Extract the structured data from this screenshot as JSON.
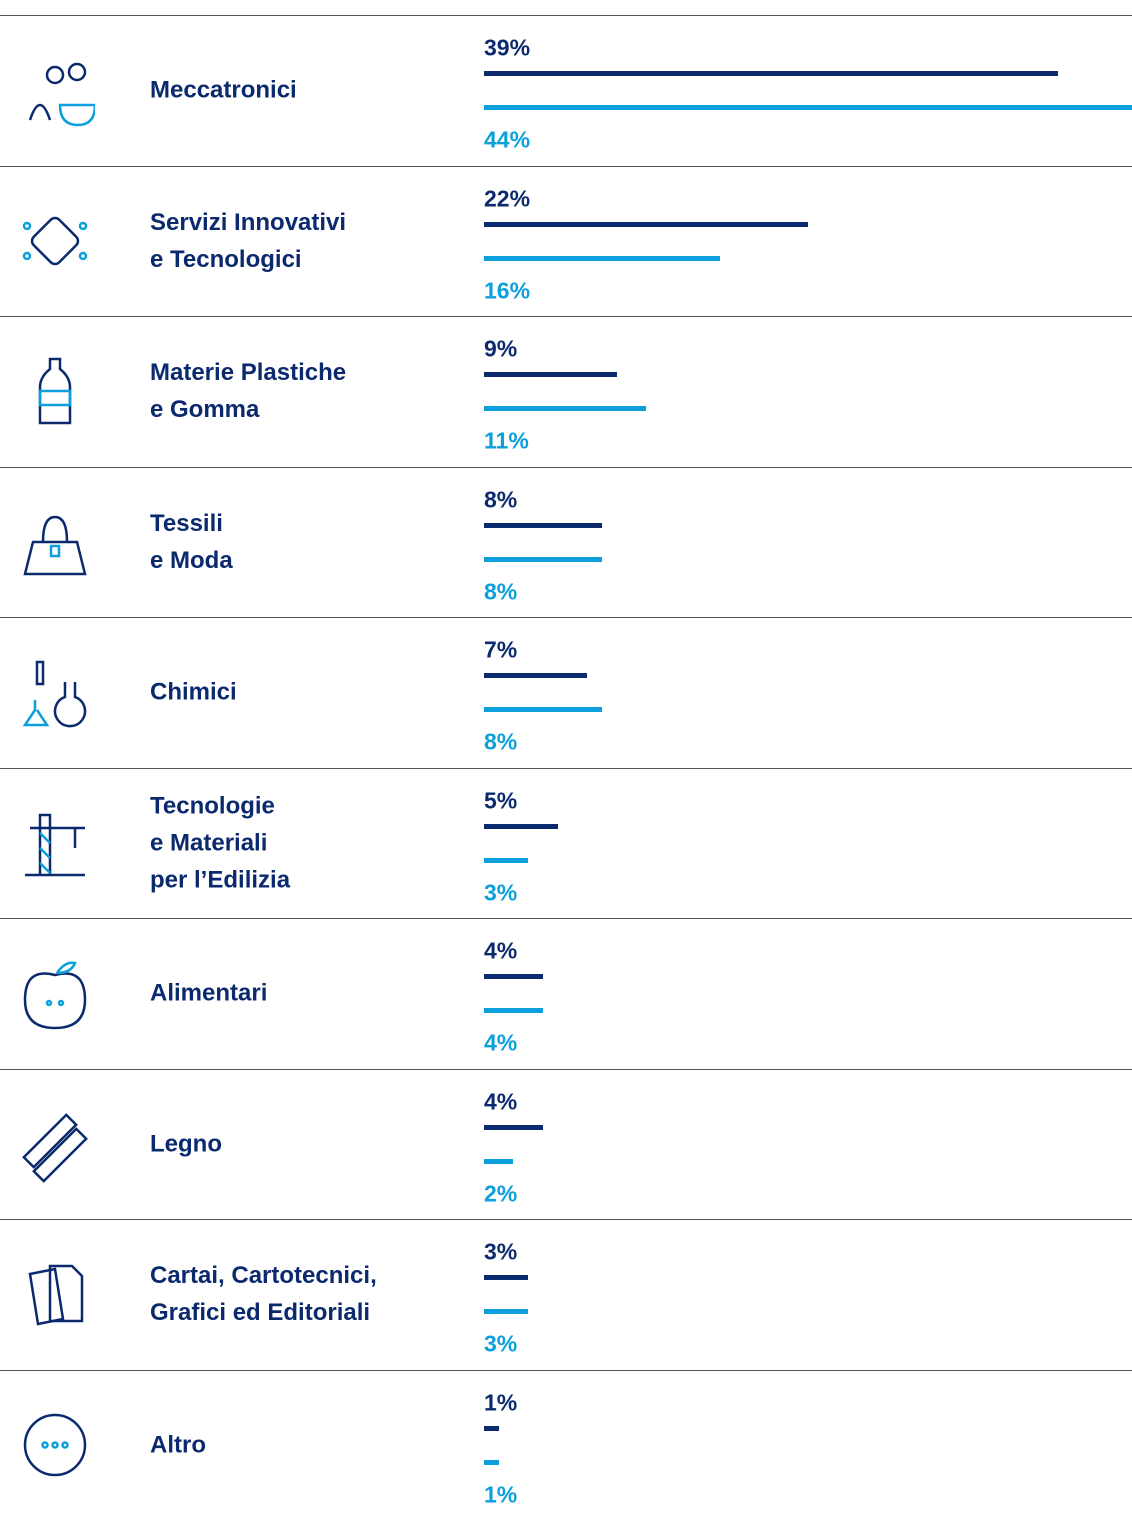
{
  "chart_data": {
    "type": "bar",
    "categories": [
      "Meccatronici",
      "Servizi Innovativi\ne Tecnologici",
      "Materie Plastiche\ne Gomma",
      "Tessili\ne Moda",
      "Chimici",
      "Tecnologie\ne Materiali\nper l’Edilizia",
      "Alimentari",
      "Legno",
      "Cartai, Cartotecnici,\nGrafici ed Editoriali",
      "Altro"
    ],
    "series": [
      {
        "color": "#0b2a6e",
        "values": [
          39,
          22,
          9,
          8,
          7,
          5,
          4,
          4,
          3,
          1
        ],
        "value_labels": [
          "39%",
          "22%",
          "9%",
          "8%",
          "7%",
          "5%",
          "4%",
          "4%",
          "3%",
          "1%"
        ]
      },
      {
        "color": "#0b9fdb",
        "values": [
          44,
          16,
          11,
          8,
          8,
          3,
          4,
          2,
          3,
          1
        ],
        "value_labels": [
          "44%",
          "16%",
          "11%",
          "8%",
          "8%",
          "3%",
          "4%",
          "2%",
          "3%",
          "1%"
        ]
      }
    ]
  }
}
